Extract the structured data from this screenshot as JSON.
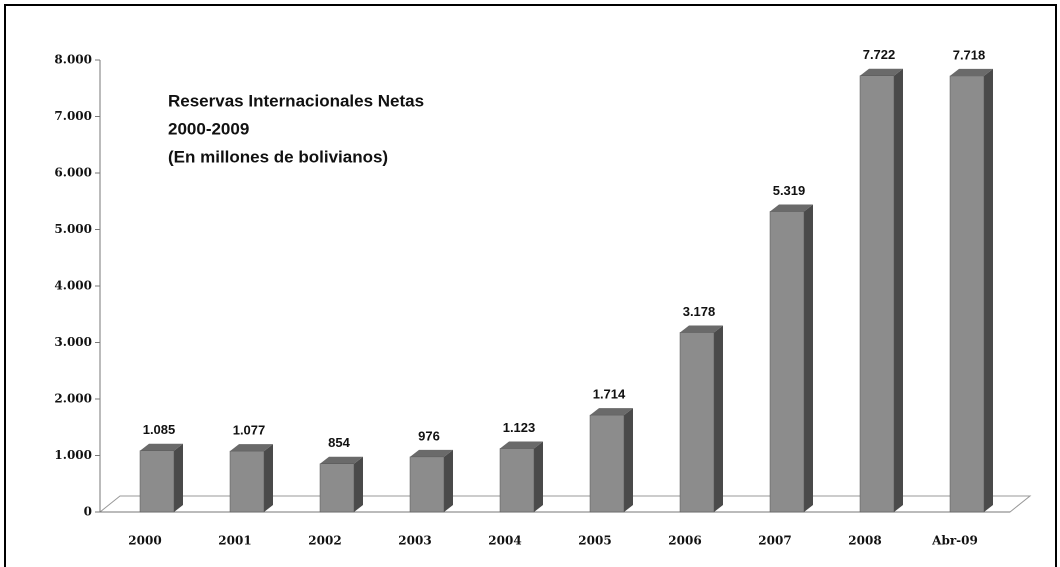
{
  "chart_data": {
    "type": "bar",
    "title_lines": [
      "Reservas Internacionales Netas",
      "2000-2009",
      "(En millones de bolivianos)"
    ],
    "categories": [
      "2000",
      "2001",
      "2002",
      "2003",
      "2004",
      "2005",
      "2006",
      "2007",
      "2008",
      "Abr-09"
    ],
    "values": [
      1085,
      1077,
      854,
      976,
      1123,
      1714,
      3178,
      5319,
      7722,
      7718
    ],
    "value_labels": [
      "1.085",
      "1.077",
      "854",
      "976",
      "1.123",
      "1.714",
      "3.178",
      "5.319",
      "7.722",
      "7.718"
    ],
    "color": "#8c8c8c",
    "ylim": [
      0,
      8000
    ],
    "yticks": [
      0,
      {
        "value": 1000,
        "label": "1.000"
      },
      {
        "value": 2000,
        "label": "2.000"
      },
      {
        "value": 3000,
        "label": "3.000"
      },
      {
        "value": 4000,
        "label": "4.000"
      },
      {
        "value": 5000,
        "label": "5.000"
      },
      {
        "value": 6000,
        "label": "6.000"
      },
      {
        "value": 7000,
        "label": "7.000"
      },
      {
        "value": 8000,
        "label": "8.000"
      }
    ],
    "grid": false
  }
}
